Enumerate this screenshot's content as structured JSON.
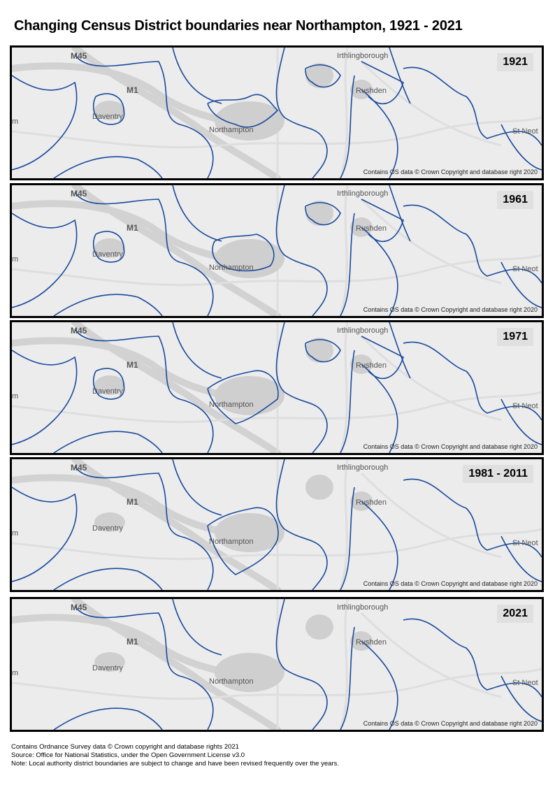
{
  "title": "Changing Census District boundaries near Northampton, 1921 - 2021",
  "map_labels": {
    "m45": "M45",
    "m1": "M1",
    "daventry": "Daventry",
    "northampton": "Northampton",
    "irthlingborough": "Irthlingborough",
    "rushden": "Rushden",
    "st_neots": "St Neot",
    "edge_m": "m"
  },
  "copyright": "Contains OS data © Crown Copyright and database right 2020",
  "panels": [
    {
      "year": "1921"
    },
    {
      "year": "1961"
    },
    {
      "year": "1971"
    },
    {
      "year": "1981 - 2011"
    },
    {
      "year": "2021"
    }
  ],
  "footer": {
    "line1": "Contains Ordnance Survey data © Crown copyright and database rights 2021",
    "line2": "Source: Office for National Statistics, under the Open Government License v3.0",
    "line3": "Note: Local authority district boundaries are subject to change and have been revised frequently over the years."
  },
  "colors": {
    "boundary": "#1a4a9c",
    "road": "#d2d2d2",
    "urban": "#cfcfcf",
    "background": "#ececec"
  }
}
